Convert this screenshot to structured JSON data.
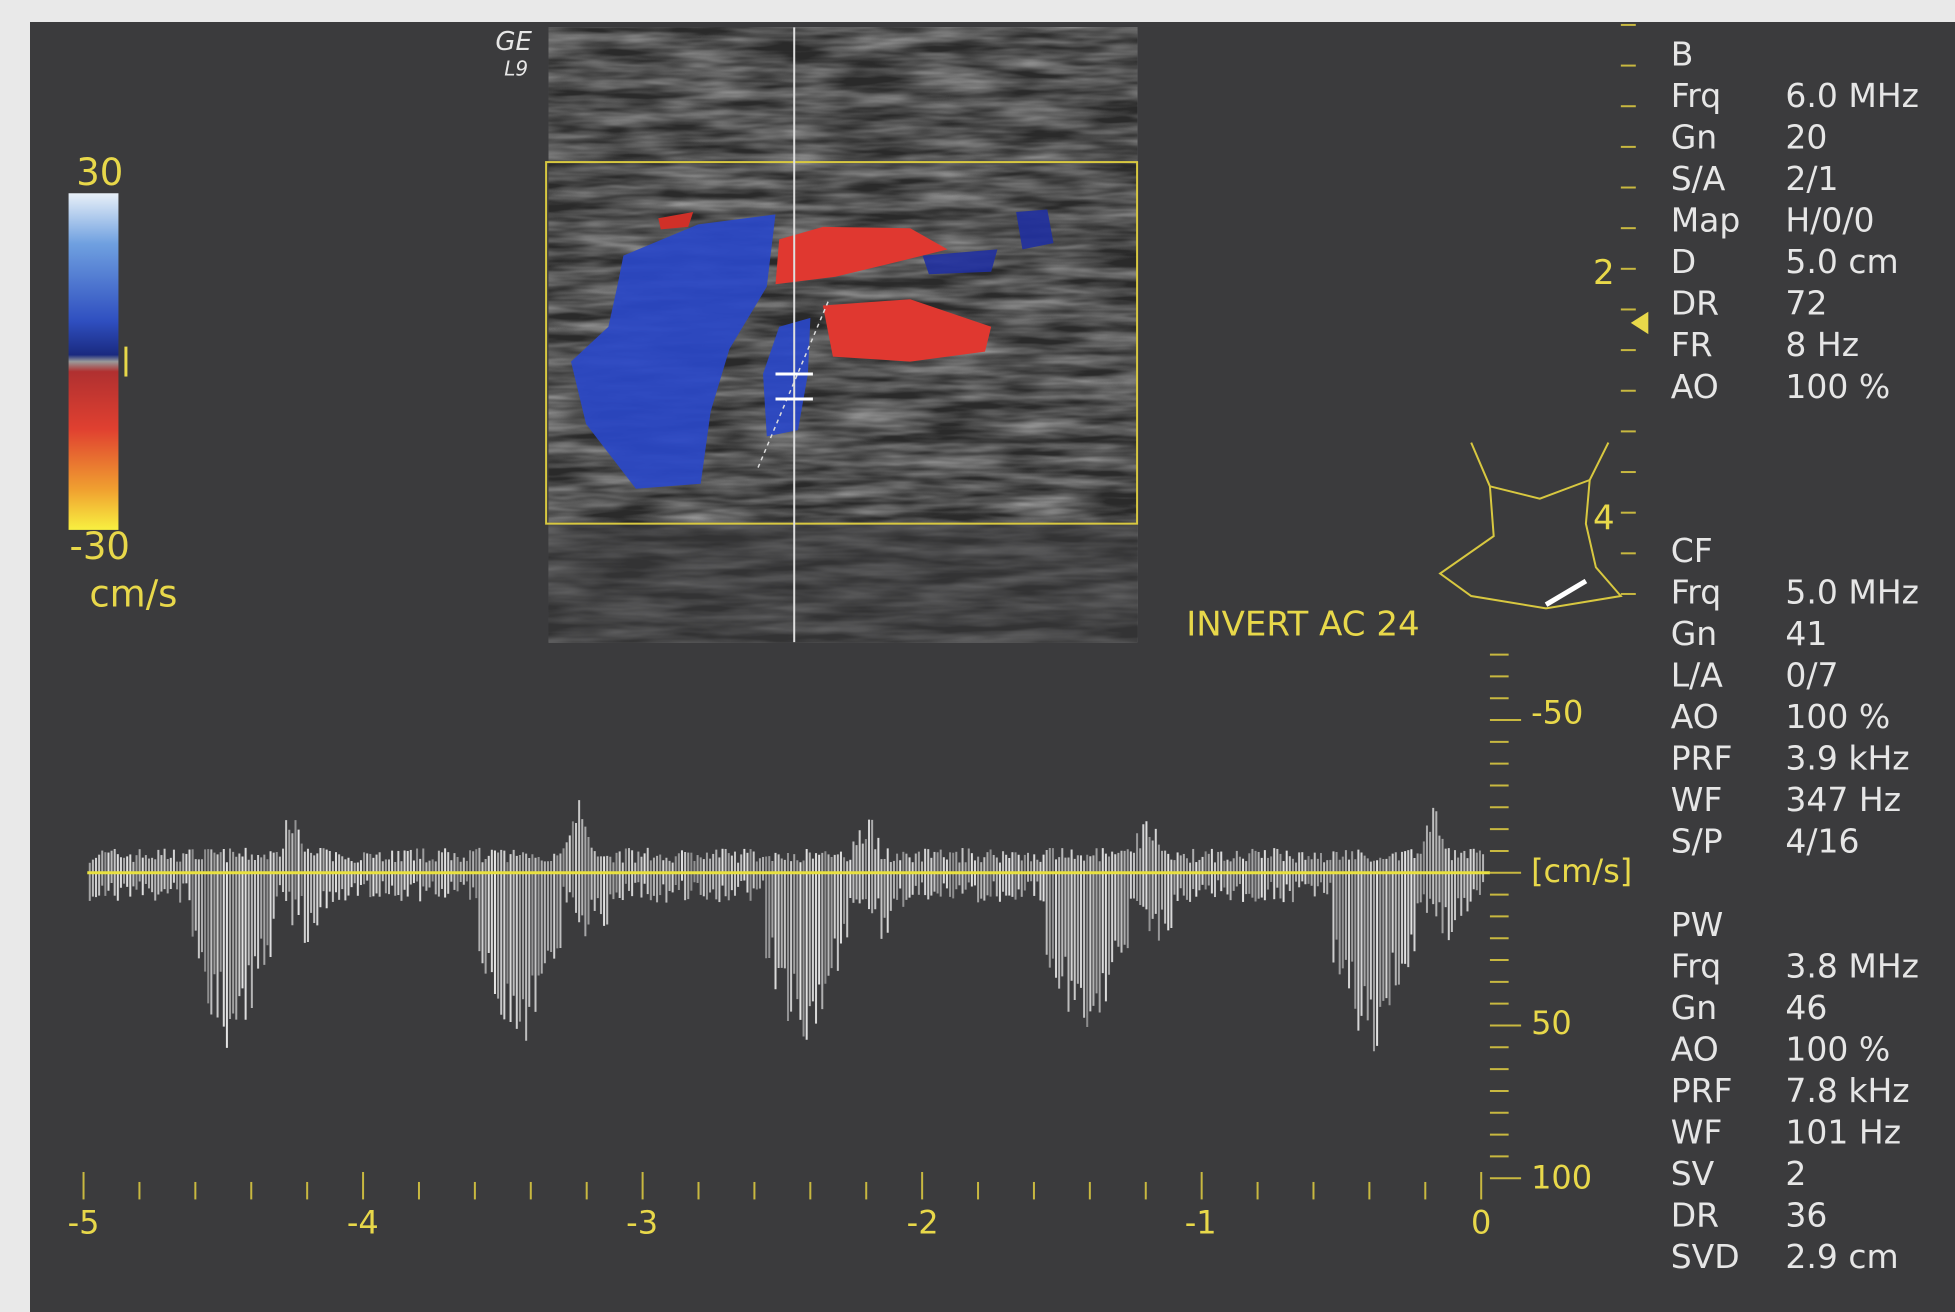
{
  "probe": {
    "brand": "GE",
    "model": "L9"
  },
  "color_scale": {
    "max": "30",
    "min": "-30",
    "unit": "cm/s"
  },
  "depth_scale": {
    "labels": [
      "2",
      "4"
    ]
  },
  "mode_label": "INVERT AC 24",
  "velocity_scale": {
    "labels": [
      "-50",
      "[cm/s]",
      "50",
      "100"
    ]
  },
  "time_axis": {
    "labels": [
      "-5",
      "-4",
      "-3",
      "-2",
      "-1",
      "0"
    ]
  },
  "parameters": {
    "sections": [
      {
        "title": "B",
        "rows": [
          [
            "Frq",
            "6.0 MHz"
          ],
          [
            "Gn",
            "20"
          ],
          [
            "S/A",
            "2/1"
          ],
          [
            "Map",
            "H/0/0"
          ],
          [
            "D",
            "5.0 cm"
          ],
          [
            "DR",
            "72"
          ],
          [
            "FR",
            "8 Hz"
          ],
          [
            "AO",
            "100 %"
          ]
        ]
      },
      {
        "title": "CF",
        "rows": [
          [
            "Frq",
            "5.0 MHz"
          ],
          [
            "Gn",
            "41"
          ],
          [
            "L/A",
            "0/7"
          ],
          [
            "AO",
            "100 %"
          ],
          [
            "PRF",
            "3.9 kHz"
          ],
          [
            "WF",
            "347 Hz"
          ],
          [
            "S/P",
            "4/16"
          ]
        ]
      },
      {
        "title": "PW",
        "rows": [
          [
            "Frq",
            "3.8 MHz"
          ],
          [
            "Gn",
            "46"
          ],
          [
            "AO",
            "100 %"
          ],
          [
            "PRF",
            "7.8 kHz"
          ],
          [
            "WF",
            "101 Hz"
          ],
          [
            "SV",
            "2"
          ],
          [
            "DR",
            "36"
          ],
          [
            "SVD",
            "2.9 cm"
          ]
        ]
      }
    ]
  }
}
